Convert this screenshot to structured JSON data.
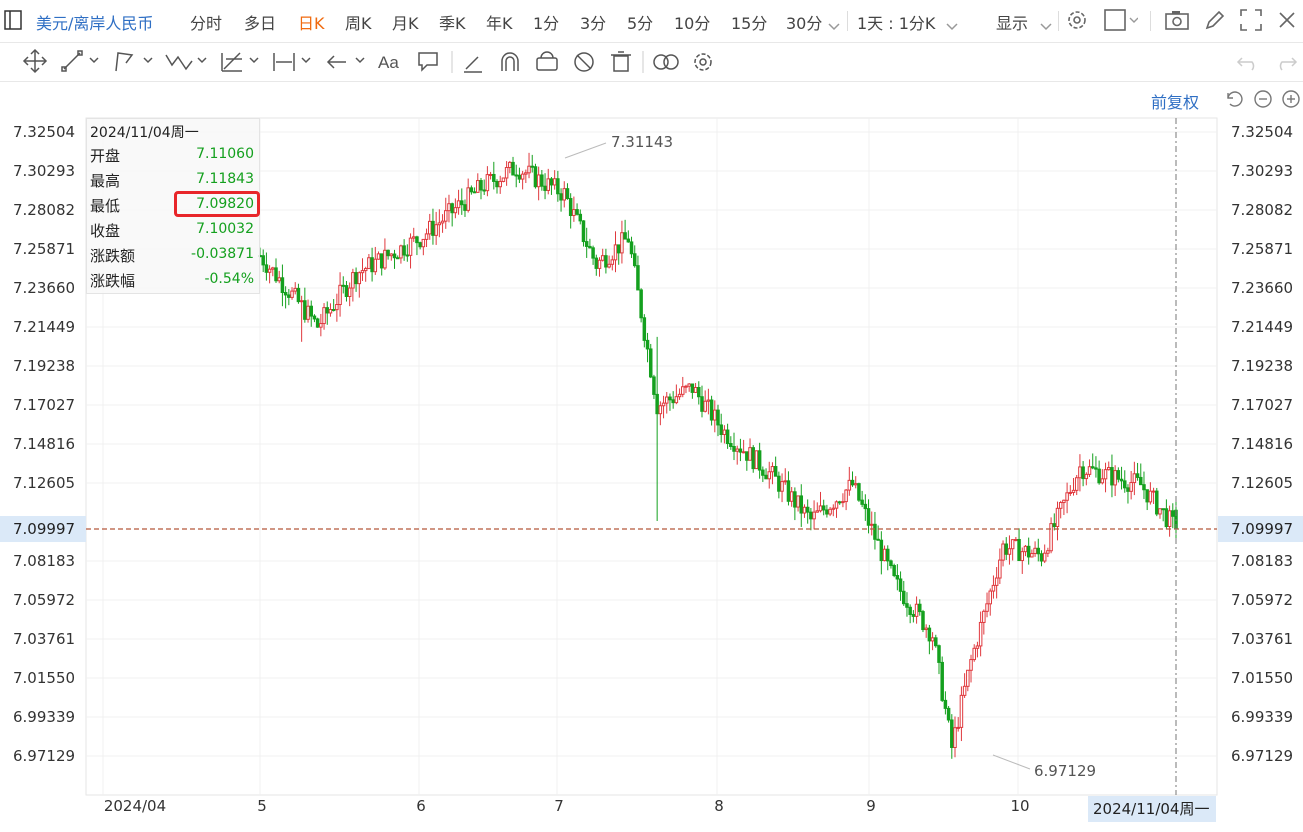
{
  "header": {
    "symbol": "美元/离岸人民币",
    "periods": [
      "分时",
      "多日",
      "日K",
      "周K",
      "月K",
      "季K",
      "年K",
      "1分",
      "3分",
      "5分",
      "10分",
      "15分",
      "30分"
    ],
    "active_period": "日K",
    "range_select": "1天 : 1分K",
    "display_menu": "显示"
  },
  "toolbar": {
    "tools": [
      "move-icon",
      "line-icon",
      "polyline-icon",
      "wave-icon",
      "fib-icon",
      "measure-icon",
      "arrow-icon",
      "text-icon",
      "comment-icon",
      "pen-icon",
      "magnet-icon",
      "lock-icon",
      "hide-icon",
      "trash-icon",
      "compare-icon",
      "settings-icon"
    ]
  },
  "adjust_label": "前复权",
  "info": {
    "date": "2024/11/04周一",
    "rows": [
      {
        "label": "开盘",
        "value": "7.11060"
      },
      {
        "label": "最高",
        "value": "7.11843"
      },
      {
        "label": "最低",
        "value": "7.09820"
      },
      {
        "label": "收盘",
        "value": "7.10032"
      },
      {
        "label": "涨跌额",
        "value": "-0.03871"
      },
      {
        "label": "涨跌幅",
        "value": "-0.54%"
      }
    ]
  },
  "colors": {
    "up": "#e0393e",
    "down": "#14a01e",
    "accent": "#2f6fc4",
    "active": "#f06a0f"
  },
  "chart_data": {
    "type": "candlestick",
    "y_ticks": [
      "7.32504",
      "7.30293",
      "7.28082",
      "7.25871",
      "7.23660",
      "7.21449",
      "7.19238",
      "7.17027",
      "7.14816",
      "7.12605",
      "7.09997",
      "7.08183",
      "7.05972",
      "7.03761",
      "7.01550",
      "6.99339",
      "6.97129"
    ],
    "current_price": "7.09997",
    "x_labels": [
      "2024/04",
      "5",
      "6",
      "7",
      "8",
      "9",
      "10"
    ],
    "crosshair_date": "2024/11/04周一",
    "annotations": {
      "high": "7.31143",
      "low": "6.97129"
    },
    "ylim": [
      6.96,
      7.335
    ],
    "anchors": [
      [
        0,
        7.255
      ],
      [
        18,
        7.215
      ],
      [
        30,
        7.245
      ],
      [
        50,
        7.265
      ],
      [
        70,
        7.295
      ],
      [
        80,
        7.305
      ],
      [
        95,
        7.29
      ],
      [
        105,
        7.25
      ],
      [
        115,
        7.265
      ],
      [
        124,
        7.17
      ],
      [
        135,
        7.18
      ],
      [
        145,
        7.155
      ],
      [
        160,
        7.13
      ],
      [
        172,
        7.105
      ],
      [
        185,
        7.125
      ],
      [
        198,
        7.07
      ],
      [
        210,
        7.04
      ],
      [
        216,
        6.976
      ],
      [
        222,
        7.025
      ],
      [
        232,
        7.09
      ],
      [
        244,
        7.085
      ],
      [
        256,
        7.135
      ],
      [
        275,
        7.125
      ],
      [
        286,
        7.1
      ]
    ],
    "n": 287
  }
}
